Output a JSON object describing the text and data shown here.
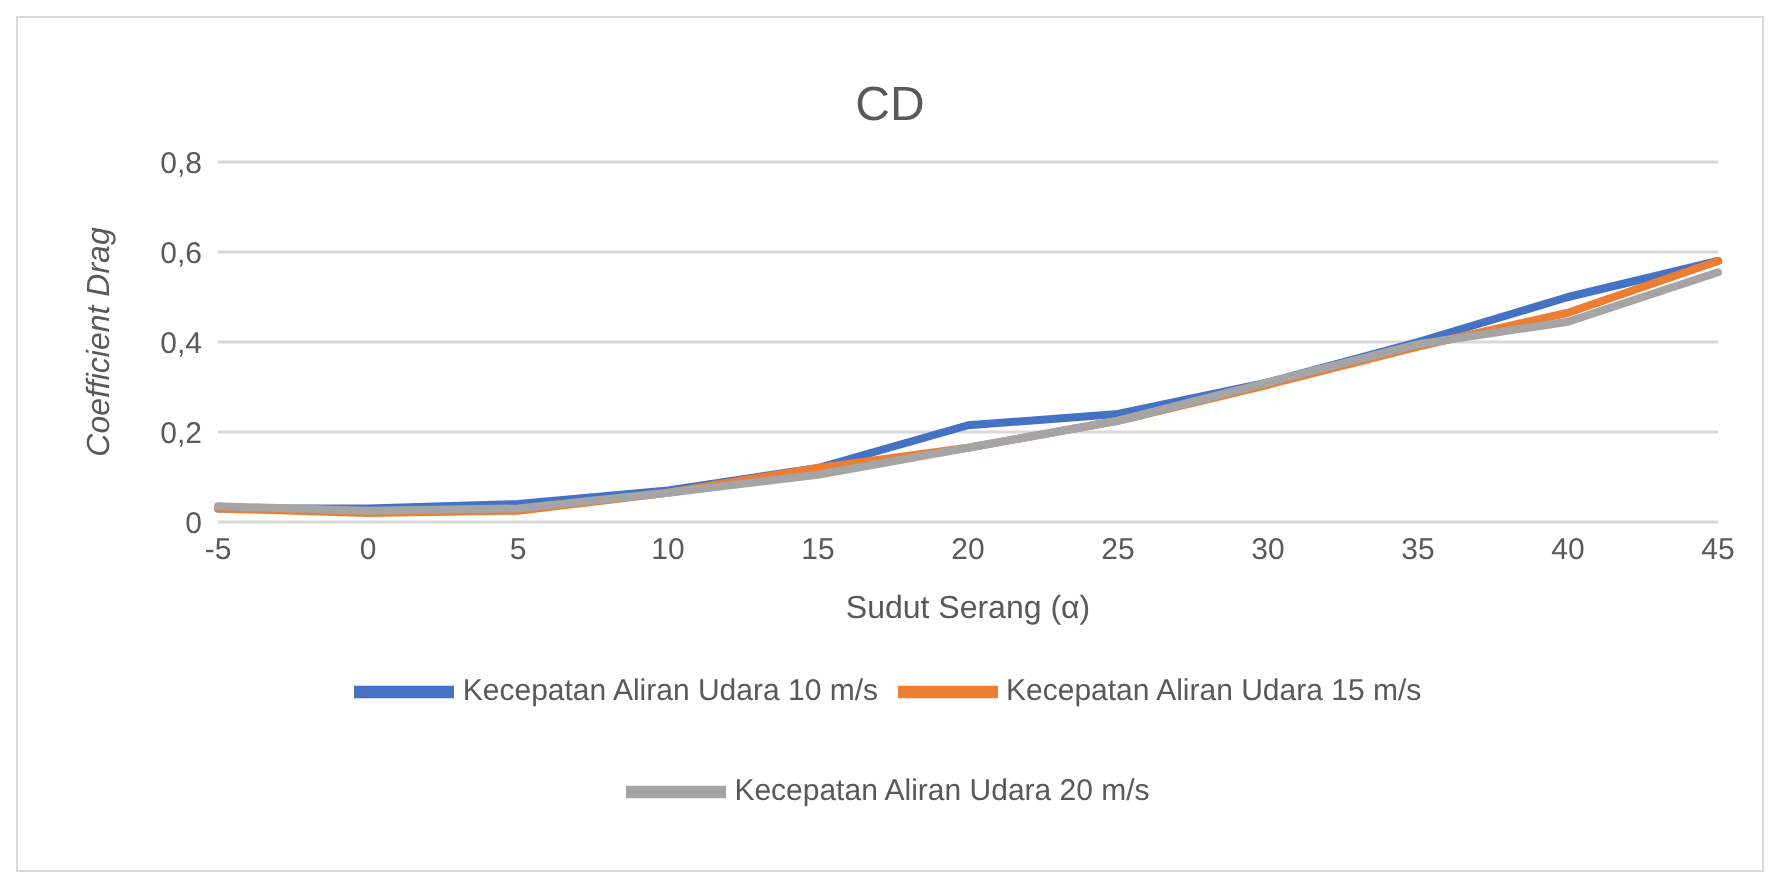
{
  "chart_data": {
    "type": "line",
    "title": "CD",
    "xlabel": "Sudut Serang (α)",
    "ylabel": "Coefficient Drag",
    "categories": [
      "-5",
      "0",
      "5",
      "10",
      "15",
      "20",
      "25",
      "30",
      "35",
      "40",
      "45"
    ],
    "series": [
      {
        "name": "Kecepatan Aliran Udara 10 m/s",
        "color": "#4472c4",
        "values": [
          0.03,
          0.03,
          0.04,
          0.07,
          0.12,
          0.215,
          0.24,
          0.31,
          0.4,
          0.5,
          0.58
        ]
      },
      {
        "name": "Kecepatan Aliran Udara 15 m/s",
        "color": "#ed7d31",
        "values": [
          0.03,
          0.02,
          0.025,
          0.065,
          0.12,
          0.165,
          0.225,
          0.305,
          0.39,
          0.465,
          0.58
        ]
      },
      {
        "name": "Kecepatan Aliran Udara 20 m/s",
        "color": "#a5a5a5",
        "values": [
          0.035,
          0.025,
          0.03,
          0.065,
          0.105,
          0.165,
          0.225,
          0.31,
          0.395,
          0.445,
          0.555
        ]
      }
    ],
    "ylim": [
      0,
      0.8
    ],
    "yticks": [
      0,
      {
        "value": 0.2,
        "label": "0,2"
      },
      {
        "value": 0.4,
        "label": "0,4"
      },
      {
        "value": 0.6,
        "label": "0,6"
      },
      {
        "value": 0.8,
        "label": "0,8"
      }
    ],
    "grid": "y",
    "legend": "bottom",
    "marker": "none",
    "line_style": "solid"
  }
}
